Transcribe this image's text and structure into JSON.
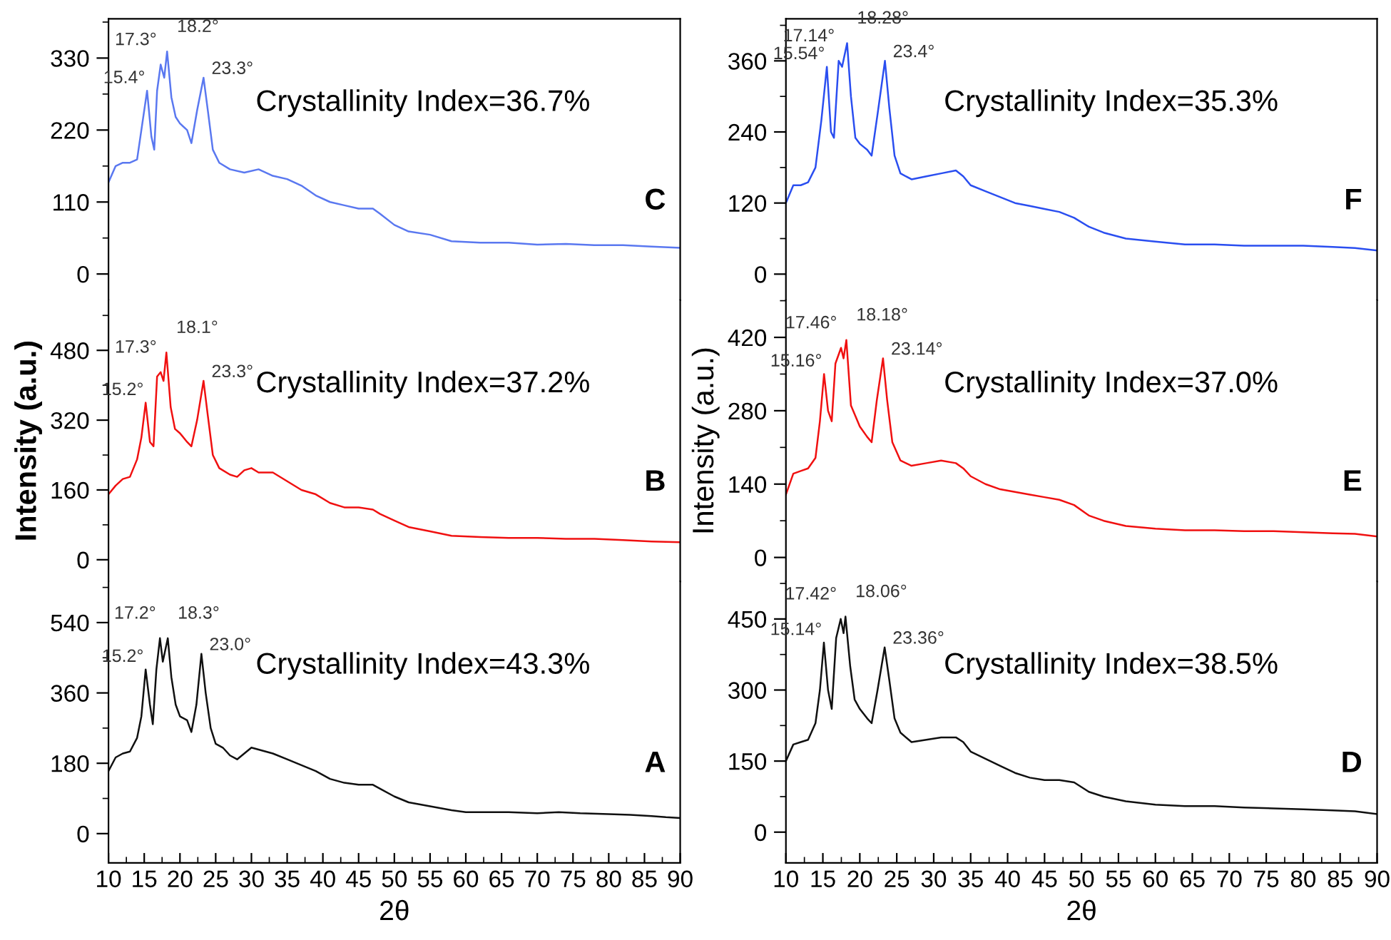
{
  "chart_data": [
    {
      "type": "line",
      "ylim": [
        -40,
        390
      ],
      "yticks": [
        0,
        110,
        220,
        330
      ],
      "xlim": [
        10,
        90
      ],
      "xticks": [
        10,
        15,
        20,
        25,
        30,
        35,
        40,
        45,
        50,
        55,
        60,
        65,
        70,
        75,
        80,
        85,
        90
      ],
      "tick_labels": "y",
      "marker": "none",
      "line_style": "solid",
      "x": [
        10,
        11,
        12,
        13,
        14,
        14.6,
        15.4,
        16,
        16.4,
        16.8,
        17.3,
        17.8,
        18.2,
        18.8,
        19.4,
        20,
        21,
        21.6,
        22.4,
        23.3,
        23.9,
        24.6,
        25.5,
        27,
        29,
        31,
        33,
        35,
        37,
        39,
        41,
        43,
        45,
        47,
        48,
        50,
        52,
        55,
        58,
        62,
        66,
        70,
        74,
        78,
        82,
        86,
        90
      ],
      "series": [
        {
          "color": "#5a78f0",
          "values": [
            140,
            165,
            170,
            170,
            175,
            220,
            280,
            210,
            190,
            280,
            320,
            300,
            340,
            270,
            240,
            230,
            220,
            200,
            250,
            300,
            250,
            190,
            170,
            160,
            155,
            160,
            150,
            145,
            135,
            120,
            110,
            105,
            100,
            100,
            92,
            75,
            65,
            60,
            50,
            48,
            48,
            45,
            46,
            44,
            44,
            42,
            40
          ]
        }
      ],
      "annotations": [
        "Crystallinity Index=36.7%",
        "C",
        {
          "text": "15.4°",
          "x": 15.4,
          "y": 280
        },
        {
          "text": "17.3°",
          "x": 17.3,
          "y": 320
        },
        {
          "text": "18.2°",
          "x": 18.2,
          "y": 340
        },
        {
          "text": "23.3°",
          "x": 23.3,
          "y": 300
        }
      ]
    },
    {
      "type": "line",
      "ylim": [
        -50,
        595
      ],
      "yticks": [
        0,
        160,
        320,
        480
      ],
      "xlim": [
        10,
        90
      ],
      "xticks": [
        10,
        15,
        20,
        25,
        30,
        35,
        40,
        45,
        50,
        55,
        60,
        65,
        70,
        75,
        80,
        85,
        90
      ],
      "tick_labels": "y",
      "ylabel": "Intensity (a.u.)",
      "marker": "none",
      "line_style": "solid",
      "x": [
        10,
        11,
        12,
        13,
        14,
        14.6,
        15.2,
        15.8,
        16.3,
        16.8,
        17.3,
        17.7,
        18.1,
        18.7,
        19.3,
        20,
        21,
        21.6,
        22.4,
        23.3,
        23.9,
        24.6,
        25.5,
        27,
        28,
        29,
        30,
        31,
        33,
        35,
        37,
        39,
        41,
        43,
        45,
        47,
        48,
        50,
        52,
        55,
        58,
        62,
        66,
        70,
        74,
        78,
        82,
        86,
        90
      ],
      "series": [
        {
          "color": "#f01010",
          "values": [
            150,
            170,
            185,
            190,
            230,
            280,
            360,
            270,
            260,
            420,
            430,
            410,
            475,
            350,
            300,
            290,
            270,
            260,
            320,
            410,
            330,
            240,
            210,
            195,
            190,
            205,
            210,
            200,
            200,
            180,
            160,
            150,
            130,
            120,
            120,
            115,
            105,
            90,
            75,
            65,
            55,
            52,
            50,
            50,
            48,
            48,
            45,
            42,
            40
          ]
        }
      ],
      "annotations": [
        "Crystallinity Index=37.2%",
        "B",
        {
          "text": "15.2°",
          "x": 15.2,
          "y": 360
        },
        {
          "text": "17.3°",
          "x": 17.3,
          "y": 430
        },
        {
          "text": "18.1°",
          "x": 18.1,
          "y": 475
        },
        {
          "text": "23.3°",
          "x": 23.3,
          "y": 410
        }
      ]
    },
    {
      "type": "line",
      "ylim": [
        -75,
        645
      ],
      "yticks": [
        0,
        180,
        360,
        540
      ],
      "xlim": [
        10,
        90
      ],
      "xticks": [
        10,
        15,
        20,
        25,
        30,
        35,
        40,
        45,
        50,
        55,
        60,
        65,
        70,
        75,
        80,
        85,
        90
      ],
      "xlabel": "2θ",
      "marker": "none",
      "line_style": "solid",
      "x": [
        10,
        11,
        12,
        13,
        14,
        14.6,
        15.2,
        15.8,
        16.2,
        16.7,
        17.2,
        17.6,
        18.3,
        18.8,
        19.4,
        20,
        21,
        21.6,
        22.3,
        23.0,
        23.6,
        24.3,
        25,
        26,
        27,
        28,
        29,
        30,
        31,
        32,
        33,
        35,
        37,
        39,
        41,
        43,
        45,
        47,
        48,
        50,
        52,
        55,
        58,
        60,
        63,
        66,
        70,
        73,
        76,
        80,
        83,
        86,
        88,
        90
      ],
      "series": [
        {
          "color": "#101010",
          "values": [
            160,
            195,
            205,
            210,
            245,
            300,
            420,
            330,
            280,
            420,
            500,
            440,
            500,
            400,
            330,
            300,
            290,
            260,
            330,
            460,
            360,
            270,
            230,
            220,
            200,
            190,
            205,
            220,
            215,
            210,
            205,
            190,
            175,
            160,
            140,
            130,
            125,
            125,
            115,
            95,
            80,
            70,
            60,
            55,
            55,
            55,
            52,
            55,
            52,
            50,
            48,
            45,
            42,
            40
          ]
        }
      ],
      "annotations": [
        "Crystallinity Index=43.3%",
        "A",
        {
          "text": "15.2°",
          "x": 15.2,
          "y": 420
        },
        {
          "text": "17.2°",
          "x": 17.2,
          "y": 500
        },
        {
          "text": "18.3°",
          "x": 18.3,
          "y": 500
        },
        {
          "text": "23.0°",
          "x": 23.0,
          "y": 460
        }
      ]
    },
    {
      "type": "line",
      "ylim": [
        -44,
        431
      ],
      "yticks": [
        0,
        120,
        240,
        360
      ],
      "xlim": [
        10,
        90
      ],
      "xticks": [
        10,
        15,
        20,
        25,
        30,
        35,
        40,
        45,
        50,
        55,
        60,
        65,
        70,
        75,
        80,
        85,
        90
      ],
      "tick_labels": "y",
      "marker": "none",
      "line_style": "solid",
      "x": [
        10,
        11,
        12,
        13,
        14,
        14.8,
        15.54,
        16.1,
        16.5,
        17.14,
        17.6,
        18.28,
        18.8,
        19.4,
        20,
        21,
        21.6,
        22.4,
        23.4,
        24,
        24.7,
        25.5,
        27,
        29,
        31,
        33,
        34,
        35,
        37,
        39,
        41,
        43,
        45,
        47,
        49,
        51,
        53,
        56,
        60,
        64,
        68,
        72,
        76,
        80,
        84,
        87,
        90
      ],
      "series": [
        {
          "color": "#2a4ef0",
          "values": [
            120,
            150,
            150,
            155,
            180,
            260,
            350,
            240,
            230,
            360,
            350,
            390,
            300,
            230,
            220,
            210,
            200,
            270,
            360,
            280,
            200,
            170,
            160,
            165,
            170,
            175,
            165,
            150,
            140,
            130,
            120,
            115,
            110,
            105,
            95,
            80,
            70,
            60,
            55,
            50,
            50,
            48,
            48,
            48,
            46,
            44,
            40
          ]
        }
      ],
      "annotations": [
        "Crystallinity Index=35.3%",
        "F",
        {
          "text": "15.54°",
          "x": 15.54,
          "y": 350
        },
        {
          "text": "17.14°",
          "x": 17.14,
          "y": 360
        },
        {
          "text": "18.28°",
          "x": 18.28,
          "y": 390
        },
        {
          "text": "23.4°",
          "x": 23.4,
          "y": 360
        }
      ]
    },
    {
      "type": "line",
      "ylim": [
        -46,
        491
      ],
      "yticks": [
        0,
        140,
        280,
        420
      ],
      "xlim": [
        10,
        90
      ],
      "xticks": [
        10,
        15,
        20,
        25,
        30,
        35,
        40,
        45,
        50,
        55,
        60,
        65,
        70,
        75,
        80,
        85,
        90
      ],
      "tick_labels": "y",
      "ylabel": "Intensity (a.u.)",
      "marker": "none",
      "line_style": "solid",
      "x": [
        10,
        11,
        12,
        13,
        14,
        14.6,
        15.16,
        15.7,
        16.2,
        16.7,
        17.46,
        17.8,
        18.18,
        18.8,
        19.4,
        20,
        21,
        21.6,
        22.3,
        23.14,
        23.7,
        24.4,
        25.5,
        27,
        29,
        31,
        33,
        34,
        35,
        37,
        39,
        41,
        43,
        45,
        47,
        49,
        51,
        53,
        56,
        60,
        64,
        68,
        72,
        76,
        80,
        84,
        87,
        90
      ],
      "series": [
        {
          "color": "#f01010",
          "values": [
            120,
            160,
            165,
            170,
            190,
            260,
            350,
            280,
            260,
            370,
            400,
            380,
            415,
            290,
            270,
            250,
            230,
            220,
            300,
            380,
            300,
            220,
            185,
            175,
            180,
            185,
            180,
            170,
            155,
            140,
            130,
            125,
            120,
            115,
            110,
            100,
            80,
            70,
            60,
            55,
            52,
            52,
            50,
            50,
            48,
            46,
            45,
            40
          ]
        }
      ],
      "annotations": [
        "Crystallinity Index=37.0%",
        "E",
        {
          "text": "15.16°",
          "x": 15.16,
          "y": 350
        },
        {
          "text": "17.46°",
          "x": 17.46,
          "y": 400
        },
        {
          "text": "18.18°",
          "x": 18.18,
          "y": 415
        },
        {
          "text": "23.14°",
          "x": 23.14,
          "y": 380
        }
      ]
    },
    {
      "type": "line",
      "ylim": [
        -65,
        529
      ],
      "yticks": [
        0,
        150,
        300,
        450
      ],
      "xlim": [
        10,
        90
      ],
      "xticks": [
        10,
        15,
        20,
        25,
        30,
        35,
        40,
        45,
        50,
        55,
        60,
        65,
        70,
        75,
        80,
        85,
        90
      ],
      "xlabel": "2θ",
      "marker": "none",
      "line_style": "solid",
      "x": [
        10,
        11,
        12,
        13,
        14,
        14.6,
        15.14,
        15.7,
        16.2,
        16.8,
        17.42,
        17.8,
        18.06,
        18.7,
        19.3,
        20,
        21,
        21.6,
        22.4,
        23.36,
        24,
        24.7,
        25.5,
        27,
        29,
        31,
        33,
        34,
        35,
        37,
        39,
        41,
        43,
        45,
        47,
        49,
        51,
        53,
        56,
        60,
        64,
        68,
        72,
        76,
        80,
        84,
        87,
        90
      ],
      "series": [
        {
          "color": "#101010",
          "values": [
            150,
            185,
            190,
            195,
            230,
            300,
            400,
            300,
            260,
            410,
            450,
            420,
            455,
            350,
            280,
            260,
            240,
            230,
            300,
            390,
            320,
            240,
            210,
            190,
            195,
            200,
            200,
            190,
            170,
            155,
            140,
            125,
            115,
            110,
            110,
            105,
            85,
            75,
            65,
            58,
            55,
            55,
            52,
            50,
            48,
            46,
            44,
            38
          ]
        }
      ],
      "annotations": [
        "Crystallinity Index=38.5%",
        "D",
        {
          "text": "15.14°",
          "x": 15.14,
          "y": 400
        },
        {
          "text": "17.42°",
          "x": 17.42,
          "y": 450
        },
        {
          "text": "18.06°",
          "x": 18.06,
          "y": 455
        },
        {
          "text": "23.36°",
          "x": 23.36,
          "y": 390
        }
      ]
    }
  ]
}
